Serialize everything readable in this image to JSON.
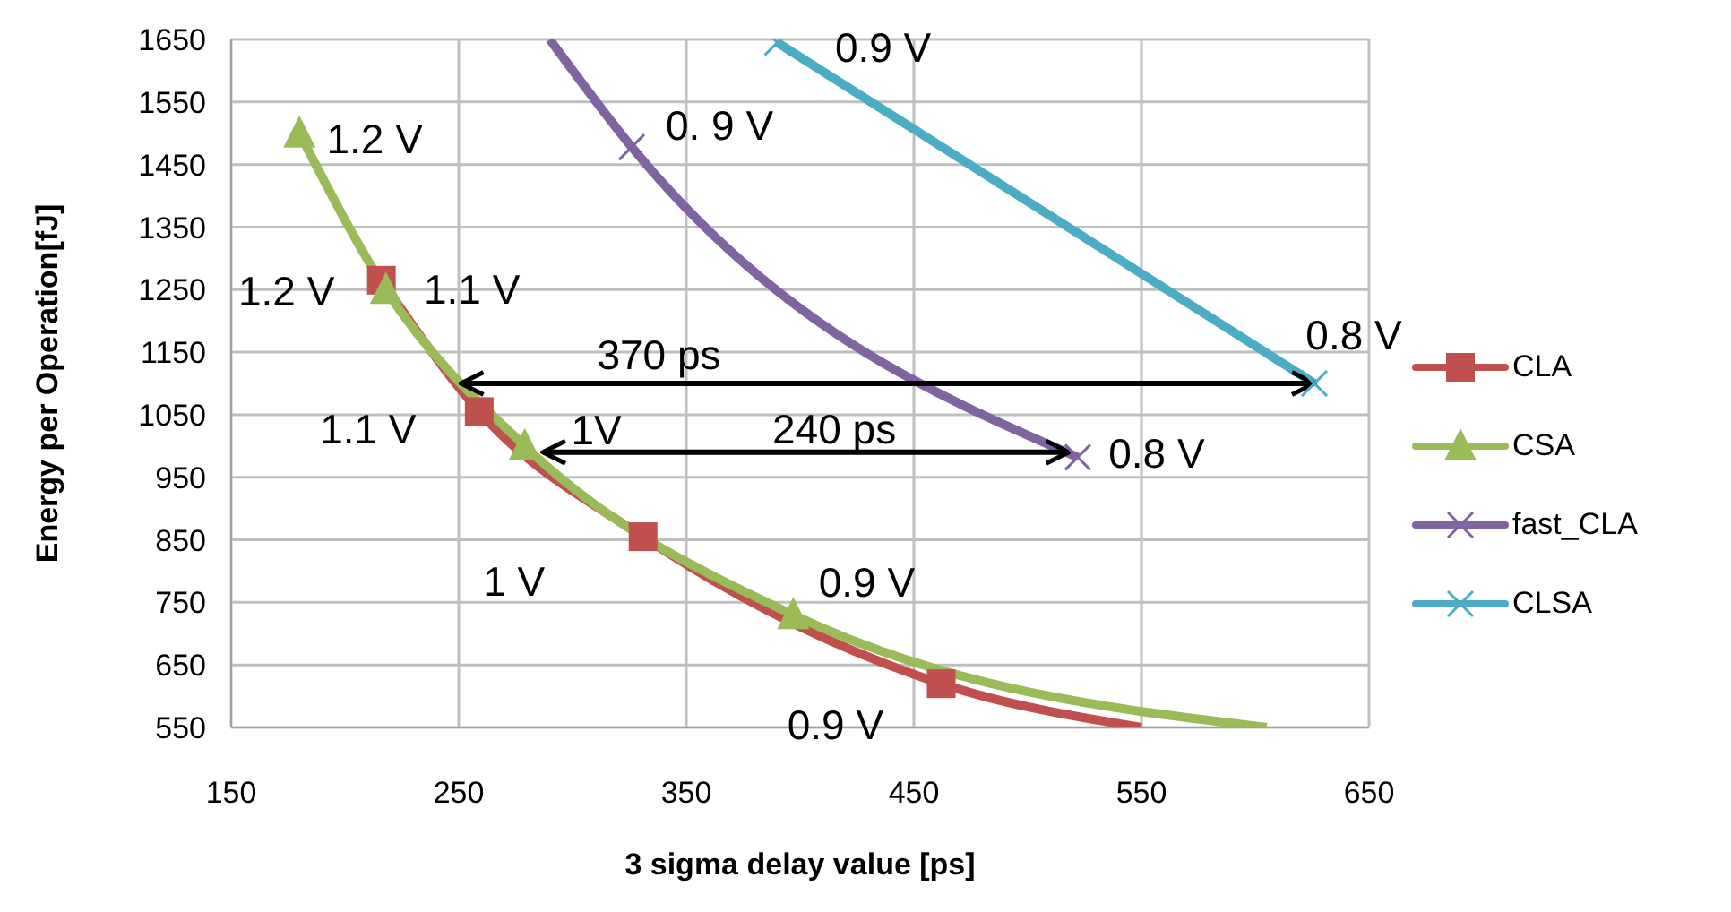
{
  "chart_data": {
    "type": "line",
    "xlabel": "3 sigma delay value [ps]",
    "ylabel": "Energy per Operation[fJ]",
    "xlim": [
      150,
      650
    ],
    "xticks": [
      150,
      250,
      350,
      450,
      550,
      650
    ],
    "ylim": [
      550,
      1650
    ],
    "yticks": [
      550,
      650,
      750,
      850,
      950,
      1050,
      1150,
      1250,
      1350,
      1450,
      1550,
      1650
    ],
    "grid": true,
    "legend": "right",
    "line_style": "solid",
    "series": [
      {
        "name": "CLA",
        "color": "#c0504d",
        "marker": "square",
        "x": [
          216,
          259,
          331,
          462,
          550
        ],
        "values": [
          1265,
          1055,
          855,
          620,
          550
        ]
      },
      {
        "name": "CSA",
        "color": "#9bbb59",
        "marker": "triangle",
        "x": [
          180,
          218,
          279,
          397,
          605
        ],
        "values": [
          1500,
          1250,
          1000,
          730,
          550
        ]
      },
      {
        "name": "fast_CLA",
        "color": "#8064a2",
        "marker": "cross",
        "x": [
          290,
          326,
          522
        ],
        "values": [
          1650,
          1478,
          982
        ]
      },
      {
        "name": "CLSA",
        "color": "#4bacc6",
        "marker": "cross",
        "x": [
          390,
          626
        ],
        "values": [
          1645,
          1100
        ]
      },
      {
        "type": "line",
        "color": "#000000",
        "marker": "none",
        "x": [
          251,
          626
        ],
        "values": [
          1100,
          1100
        ]
      },
      {
        "type": "line",
        "color": "#000000",
        "marker": "none",
        "x": [
          287,
          518
        ],
        "values": [
          990,
          990
        ]
      }
    ],
    "annotations": [
      {
        "text": "1.2 V",
        "x": 216,
        "y": 1265
      },
      {
        "text": "1.1 V",
        "x": 259,
        "y": 1055
      },
      {
        "text": "1 V",
        "x": 331,
        "y": 855
      },
      {
        "text": "0.9 V",
        "x": 462,
        "y": 620
      },
      {
        "text": "1.2 V",
        "x": 180,
        "y": 1500
      },
      {
        "text": "1.1 V",
        "x": 218,
        "y": 1250
      },
      {
        "text": "1V",
        "x": 279,
        "y": 1000
      },
      {
        "text": "0.9 V",
        "x": 397,
        "y": 730
      },
      {
        "text": "0. 9 V",
        "x": 326,
        "y": 1478
      },
      {
        "text": "0.8 V",
        "x": 522,
        "y": 982
      },
      {
        "text": "0.9 V",
        "x": 390,
        "y": 1645
      },
      {
        "text": "0.8 V",
        "x": 626,
        "y": 1100
      },
      {
        "text": "370 ps",
        "x": 338,
        "y": 1100
      },
      {
        "text": "240 ps",
        "x": 415,
        "y": 990
      }
    ]
  }
}
